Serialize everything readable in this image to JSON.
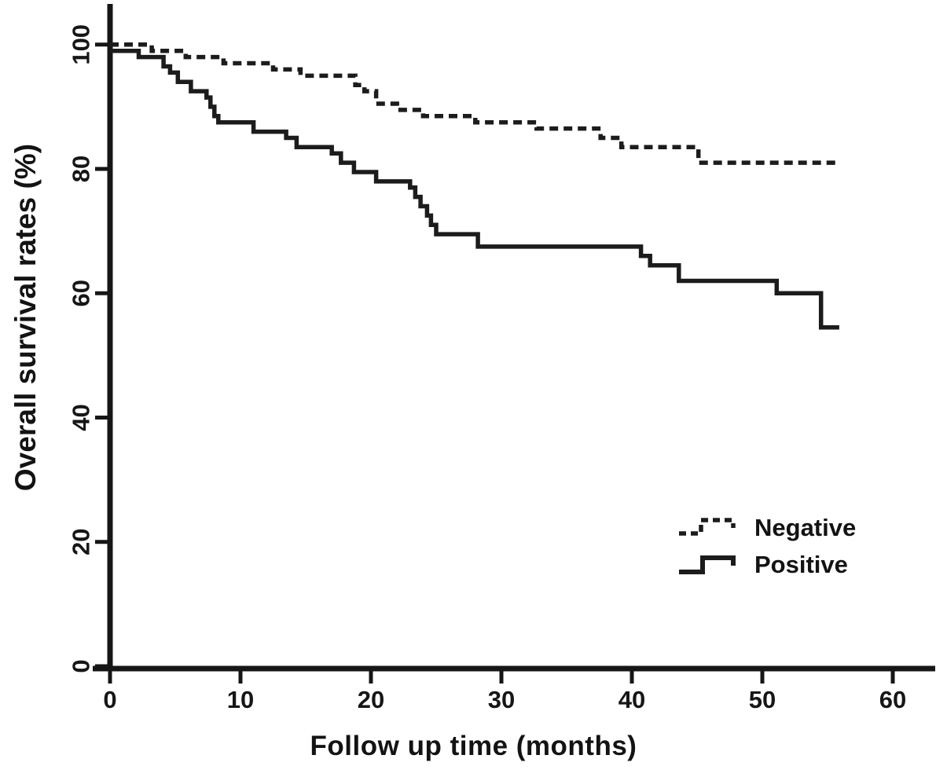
{
  "chart_data": {
    "type": "line",
    "subtype": "kaplan-meier-step",
    "title": "",
    "xlabel": "Follow up time (months)",
    "ylabel": "Overall survival rates (%)",
    "xlim": [
      0,
      63.3
    ],
    "ylim": [
      0,
      106
    ],
    "x_ticks": [
      0,
      10,
      20,
      30,
      40,
      50,
      60
    ],
    "y_ticks": [
      0,
      20,
      40,
      60,
      80,
      100
    ],
    "y_tick_labels_rotated": true,
    "grid": false,
    "legend_position": "center-right",
    "axis_color": "#161616",
    "series": [
      {
        "name": "Negative",
        "style": "dashed",
        "color": "#1c1c1c",
        "end_time": 55.9,
        "steps": [
          [
            0,
            100
          ],
          [
            3.2,
            99
          ],
          [
            5.8,
            98
          ],
          [
            8.7,
            97
          ],
          [
            12.5,
            96
          ],
          [
            14.6,
            95
          ],
          [
            18.8,
            93.5
          ],
          [
            19.5,
            92.5
          ],
          [
            20.4,
            90.5
          ],
          [
            22,
            89.5
          ],
          [
            24,
            88.5
          ],
          [
            28,
            87.5
          ],
          [
            32.7,
            86.5
          ],
          [
            37.6,
            85
          ],
          [
            39.2,
            83.5
          ],
          [
            45.1,
            81
          ]
        ]
      },
      {
        "name": "Positive",
        "style": "solid",
        "color": "#1c1c1c",
        "end_time": 55.9,
        "steps": [
          [
            0,
            99
          ],
          [
            2.2,
            98
          ],
          [
            4.1,
            96.5
          ],
          [
            4.6,
            95.5
          ],
          [
            5.2,
            94
          ],
          [
            6.2,
            92.5
          ],
          [
            7.4,
            91.5
          ],
          [
            7.7,
            90
          ],
          [
            8,
            88.5
          ],
          [
            8.3,
            87.5
          ],
          [
            11,
            86
          ],
          [
            13.5,
            85
          ],
          [
            14.3,
            83.5
          ],
          [
            17,
            82.5
          ],
          [
            17.7,
            81
          ],
          [
            18.7,
            79.5
          ],
          [
            20.4,
            78
          ],
          [
            23,
            77
          ],
          [
            23.4,
            75.5
          ],
          [
            23.8,
            74
          ],
          [
            24.3,
            72.5
          ],
          [
            24.6,
            71
          ],
          [
            25,
            69.5
          ],
          [
            28.2,
            67.5
          ],
          [
            40.7,
            66
          ],
          [
            41.4,
            64.5
          ],
          [
            43.6,
            62
          ],
          [
            51.1,
            60
          ],
          [
            54.5,
            54.5
          ]
        ]
      }
    ]
  }
}
